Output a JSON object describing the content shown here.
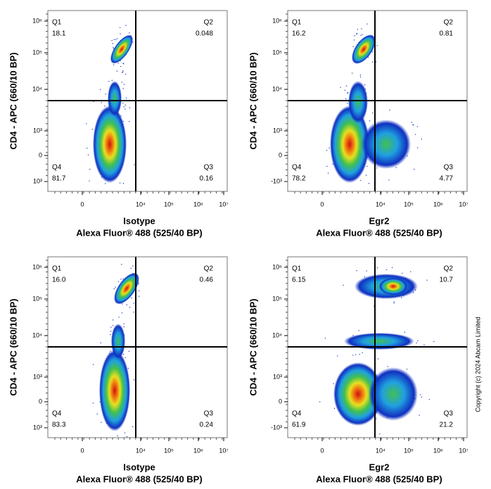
{
  "panels": [
    {
      "quadrants": [
        {
          "label": "Q1",
          "value": "18.1"
        },
        {
          "label": "Q2",
          "value": "0.048"
        },
        {
          "label": "Q3",
          "value": "0.16"
        },
        {
          "label": "Q4",
          "value": "81.7"
        }
      ],
      "y_label": "CD4 - APC (660/10 BP)",
      "x_label": "Isotype",
      "x_sublabel": "Alexa Fluor® 488  (525/40 BP)",
      "y_ticks": [
        "10⁶",
        "10⁵",
        "10⁴",
        "10³",
        "0",
        "10³"
      ],
      "x_ticks": [
        "0",
        "10⁴",
        "10⁵",
        "10⁶",
        "10⁷"
      ]
    },
    {
      "quadrants": [
        {
          "label": "Q1",
          "value": "16.2"
        },
        {
          "label": "Q2",
          "value": "0.81"
        },
        {
          "label": "Q3",
          "value": "4.77"
        },
        {
          "label": "Q4",
          "value": "78.2"
        }
      ],
      "y_label": "CD4 - APC (660/10 BP)",
      "x_label": "Egr2",
      "x_sublabel": "Alexa Fluor® 488  (525/40 BP)",
      "y_ticks": [
        "10⁶",
        "10⁵",
        "10⁴",
        "10³",
        "0",
        "-10³"
      ],
      "x_ticks": [
        "0",
        "10⁴",
        "10⁵",
        "10⁶",
        "10⁷"
      ]
    },
    {
      "quadrants": [
        {
          "label": "Q1",
          "value": "16.0"
        },
        {
          "label": "Q2",
          "value": "0.46"
        },
        {
          "label": "Q3",
          "value": "0.24"
        },
        {
          "label": "Q4",
          "value": "83.3"
        }
      ],
      "y_label": "CD4 - APC (660/10 BP)",
      "x_label": "Isotype",
      "x_sublabel": "Alexa Fluor® 488  (525/40 BP)",
      "y_ticks": [
        "10⁶",
        "10⁵",
        "10⁴",
        "10³",
        "0",
        "10³"
      ],
      "x_ticks": [
        "0",
        "10⁴",
        "10⁵",
        "10⁶",
        "10⁷"
      ]
    },
    {
      "quadrants": [
        {
          "label": "Q1",
          "value": "6.15"
        },
        {
          "label": "Q2",
          "value": "10.7"
        },
        {
          "label": "Q3",
          "value": "21.2"
        },
        {
          "label": "Q4",
          "value": "61.9"
        }
      ],
      "y_label": "CD4 - APC (660/10 BP)",
      "x_label": "Egr2",
      "x_sublabel": "Alexa Fluor® 488  (525/40 BP)",
      "y_ticks": [
        "10⁶",
        "10⁵",
        "10⁴",
        "10³",
        "0",
        "-10³"
      ],
      "x_ticks": [
        "0",
        "10⁴",
        "10⁵",
        "10⁶",
        "10⁷"
      ]
    }
  ],
  "copyright": "Copyright (c) 2024 Abcam Limited"
}
